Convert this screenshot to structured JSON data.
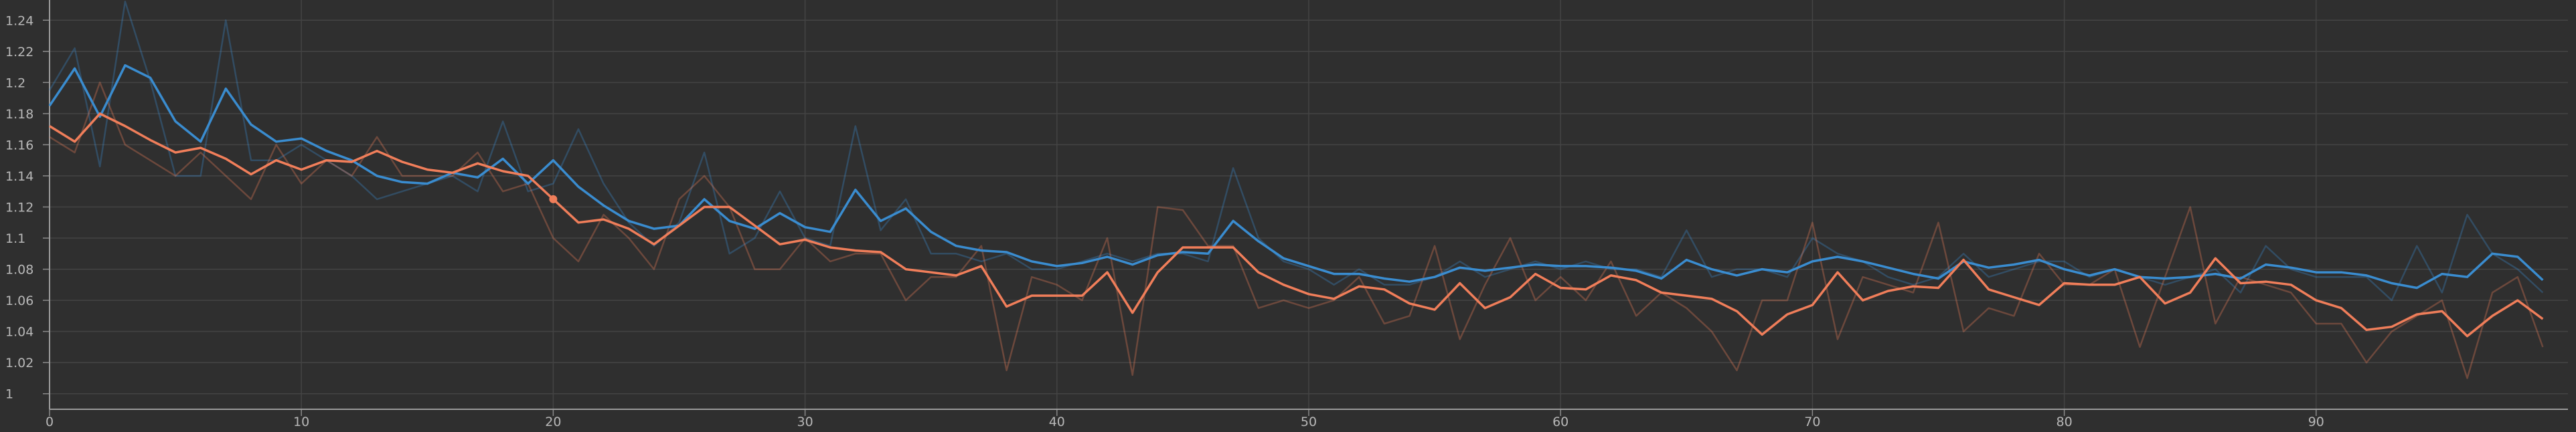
{
  "chart_data": {
    "type": "line",
    "title": "",
    "xlabel": "",
    "ylabel": "",
    "xlim": [
      0,
      100
    ],
    "ylim": [
      0.99,
      1.253
    ],
    "x_ticks": [
      0,
      10,
      20,
      30,
      40,
      50,
      60,
      70,
      80,
      90
    ],
    "y_ticks": [
      1,
      1.02,
      1.04,
      1.06,
      1.08,
      1.1,
      1.12,
      1.14,
      1.16,
      1.18,
      1.2,
      1.22,
      1.24
    ],
    "grid": true,
    "legend": "none",
    "highlight_point": {
      "x": 20,
      "y": 1.125,
      "color": "#f07e5a"
    },
    "series": [
      {
        "color": "#3a8ccf",
        "style": "raw",
        "values": [
          1.195,
          1.222,
          1.146,
          1.252,
          1.201,
          1.14,
          1.14,
          1.24,
          1.15,
          1.15,
          1.16,
          1.15,
          1.14,
          1.125,
          1.13,
          1.135,
          1.14,
          1.13,
          1.175,
          1.13,
          1.135,
          1.17,
          1.135,
          1.11,
          1.095,
          1.11,
          1.155,
          1.09,
          1.1,
          1.13,
          1.1,
          1.095,
          1.172,
          1.105,
          1.125,
          1.09,
          1.09,
          1.085,
          1.09,
          1.08,
          1.08,
          1.085,
          1.09,
          1.085,
          1.09,
          1.09,
          1.085,
          1.145,
          1.1,
          1.085,
          1.08,
          1.07,
          1.08,
          1.07,
          1.07,
          1.075,
          1.085,
          1.075,
          1.08,
          1.085,
          1.08,
          1.085,
          1.08,
          1.08,
          1.075,
          1.105,
          1.075,
          1.08,
          1.08,
          1.075,
          1.1,
          1.09,
          1.085,
          1.075,
          1.07,
          1.075,
          1.09,
          1.075,
          1.08,
          1.085,
          1.085,
          1.075,
          1.08,
          1.075,
          1.07,
          1.075,
          1.08,
          1.065,
          1.095,
          1.08,
          1.075,
          1.075,
          1.075,
          1.06,
          1.095,
          1.065,
          1.115,
          1.09,
          1.08,
          1.065
        ]
      },
      {
        "color": "#f07e5a",
        "style": "raw",
        "values": [
          1.165,
          1.155,
          1.2,
          1.16,
          1.15,
          1.14,
          1.155,
          1.14,
          1.125,
          1.16,
          1.135,
          1.15,
          1.14,
          1.165,
          1.14,
          1.14,
          1.14,
          1.155,
          1.13,
          1.135,
          1.1,
          1.085,
          1.115,
          1.1,
          1.08,
          1.125,
          1.14,
          1.12,
          1.08,
          1.08,
          1.1,
          1.085,
          1.09,
          1.09,
          1.06,
          1.075,
          1.075,
          1.095,
          1.015,
          1.075,
          1.07,
          1.06,
          1.1,
          1.012,
          1.12,
          1.118,
          1.095,
          1.095,
          1.055,
          1.06,
          1.055,
          1.06,
          1.075,
          1.045,
          1.05,
          1.095,
          1.035,
          1.07,
          1.1,
          1.06,
          1.075,
          1.06,
          1.085,
          1.05,
          1.065,
          1.055,
          1.04,
          1.015,
          1.06,
          1.06,
          1.11,
          1.035,
          1.075,
          1.07,
          1.065,
          1.11,
          1.04,
          1.055,
          1.05,
          1.09,
          1.07,
          1.07,
          1.08,
          1.03,
          1.075,
          1.12,
          1.045,
          1.075,
          1.07,
          1.065,
          1.045,
          1.045,
          1.02,
          1.04,
          1.05,
          1.06,
          1.01,
          1.065,
          1.075,
          1.03
        ]
      },
      {
        "color": "#3a8ccf",
        "style": "smoothed",
        "values": [
          1.185,
          1.209,
          1.178,
          1.211,
          1.203,
          1.175,
          1.162,
          1.196,
          1.173,
          1.162,
          1.164,
          1.156,
          1.15,
          1.14,
          1.136,
          1.135,
          1.142,
          1.139,
          1.151,
          1.135,
          1.15,
          1.133,
          1.121,
          1.111,
          1.106,
          1.108,
          1.125,
          1.111,
          1.106,
          1.116,
          1.107,
          1.104,
          1.131,
          1.111,
          1.119,
          1.104,
          1.095,
          1.092,
          1.091,
          1.085,
          1.082,
          1.084,
          1.088,
          1.083,
          1.089,
          1.091,
          1.09,
          1.111,
          1.098,
          1.087,
          1.082,
          1.077,
          1.077,
          1.074,
          1.072,
          1.075,
          1.081,
          1.079,
          1.081,
          1.083,
          1.082,
          1.082,
          1.081,
          1.079,
          1.074,
          1.086,
          1.08,
          1.076,
          1.08,
          1.078,
          1.085,
          1.088,
          1.085,
          1.081,
          1.077,
          1.074,
          1.085,
          1.081,
          1.083,
          1.086,
          1.08,
          1.076,
          1.08,
          1.075,
          1.074,
          1.075,
          1.077,
          1.074,
          1.083,
          1.081,
          1.078,
          1.078,
          1.076,
          1.071,
          1.068,
          1.077,
          1.075,
          1.09,
          1.088,
          1.073
        ]
      },
      {
        "color": "#f07e5a",
        "style": "smoothed",
        "values": [
          1.172,
          1.162,
          1.18,
          1.172,
          1.163,
          1.155,
          1.158,
          1.151,
          1.141,
          1.15,
          1.144,
          1.15,
          1.149,
          1.156,
          1.149,
          1.144,
          1.142,
          1.148,
          1.143,
          1.14,
          1.125,
          1.11,
          1.112,
          1.106,
          1.096,
          1.108,
          1.12,
          1.12,
          1.108,
          1.096,
          1.099,
          1.094,
          1.092,
          1.091,
          1.08,
          1.078,
          1.076,
          1.082,
          1.056,
          1.063,
          1.063,
          1.063,
          1.078,
          1.052,
          1.078,
          1.094,
          1.094,
          1.094,
          1.078,
          1.07,
          1.064,
          1.061,
          1.069,
          1.067,
          1.058,
          1.054,
          1.071,
          1.055,
          1.062,
          1.077,
          1.068,
          1.067,
          1.076,
          1.073,
          1.065,
          1.063,
          1.061,
          1.053,
          1.038,
          1.051,
          1.057,
          1.078,
          1.06,
          1.066,
          1.069,
          1.068,
          1.086,
          1.067,
          1.062,
          1.057,
          1.071,
          1.07,
          1.07,
          1.075,
          1.058,
          1.065,
          1.087,
          1.071,
          1.072,
          1.07,
          1.06,
          1.055,
          1.041,
          1.043,
          1.051,
          1.053,
          1.037,
          1.05,
          1.06,
          1.048
        ]
      }
    ]
  }
}
